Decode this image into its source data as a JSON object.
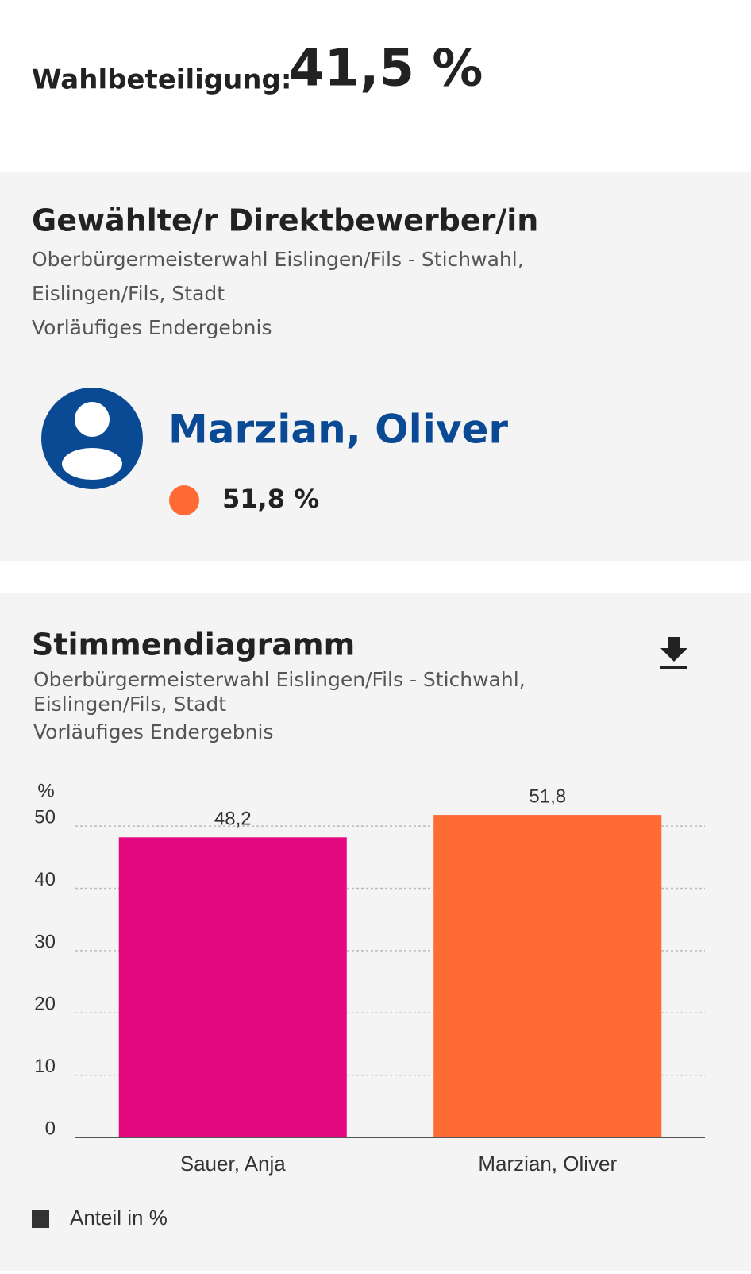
{
  "turnout": {
    "label": "Wahlbeteiligung:",
    "value": "41,5 %"
  },
  "elected": {
    "title": "Gewählte/r Direktbewerber/in",
    "subtitle": [
      "Oberbürgermeisterwahl Eislingen/Fils - Stichwahl,",
      "Eislingen/Fils, Stadt",
      "Vorläufiges Endergebnis"
    ],
    "name": "Marzian, Oliver",
    "share": "51,8 %"
  },
  "chart_data": {
    "type": "bar",
    "title": "Stimmendiagramm",
    "subtitle": [
      "Oberbürgermeisterwahl Eislingen/Fils - Stichwahl,",
      "Eislingen/Fils, Stadt",
      "Vorläufiges Endergebnis"
    ],
    "y_label": "%",
    "categories": [
      "Sauer, Anja",
      "Marzian, Oliver"
    ],
    "series": [
      {
        "name": "Anteil in %",
        "color": "#333333",
        "values": [
          48.2,
          51.8
        ],
        "value_labels": [
          "48,2",
          "51,8"
        ],
        "colors": [
          "#e5097f",
          "#ff6b35"
        ]
      }
    ],
    "ylim": [
      0,
      55
    ],
    "yticks": [
      0,
      10,
      20,
      30,
      40,
      50
    ],
    "grid": true
  }
}
